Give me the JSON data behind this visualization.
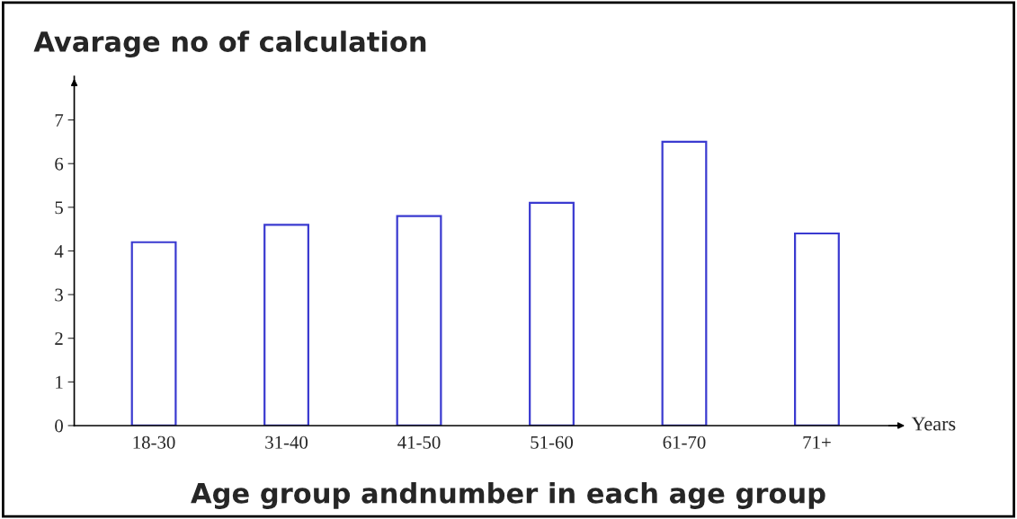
{
  "chart_data": {
    "type": "bar",
    "title": "Avarage no of calculation",
    "xlabel": "Age group andnumber in each age group",
    "categories": [
      "18-30",
      "31-40",
      "41-50",
      "51-60",
      "61-70",
      "71+"
    ],
    "values": [
      4.2,
      4.6,
      4.8,
      5.1,
      6.5,
      4.4
    ],
    "color": "#3a3ad0",
    "ylim": [
      0,
      8
    ],
    "yticks": [
      0,
      1,
      2,
      3,
      4,
      5,
      6,
      7
    ],
    "grid": false,
    "legend": false,
    "annotations": [
      "Years"
    ]
  }
}
